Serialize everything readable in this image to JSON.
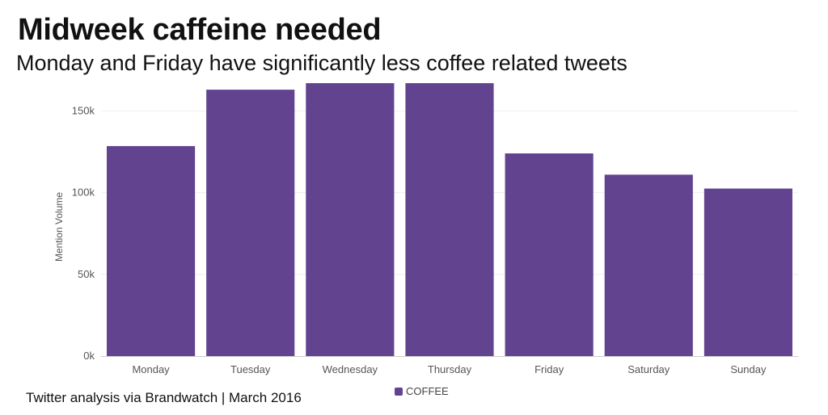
{
  "header": {
    "title": "Midweek caffeine needed",
    "subtitle": "Monday and Friday have significantly less coffee related tweets"
  },
  "footer": {
    "source": "Twitter analysis via Brandwatch | March 2016"
  },
  "colors": {
    "bar": "#62438f",
    "grid": "#eeeeee",
    "axis": "#cccccc",
    "tick_label": "#555555"
  },
  "chart_data": {
    "type": "bar",
    "title": "Midweek caffeine needed",
    "subtitle": "Monday and Friday have significantly less coffee related tweets",
    "xlabel": "",
    "ylabel": "Mention Volume",
    "ylim": [
      0,
      167000
    ],
    "yticks": [
      0,
      50000,
      100000,
      150000
    ],
    "ytick_labels": [
      "0k",
      "50k",
      "100k",
      "150k"
    ],
    "grid": true,
    "legend_position": "bottom",
    "categories": [
      "Monday",
      "Tuesday",
      "Wednesday",
      "Thursday",
      "Friday",
      "Saturday",
      "Sunday"
    ],
    "series": [
      {
        "name": "COFFEE",
        "color": "#62438f",
        "values": [
          128500,
          163000,
          168000,
          168000,
          124000,
          111000,
          102500
        ]
      }
    ]
  }
}
